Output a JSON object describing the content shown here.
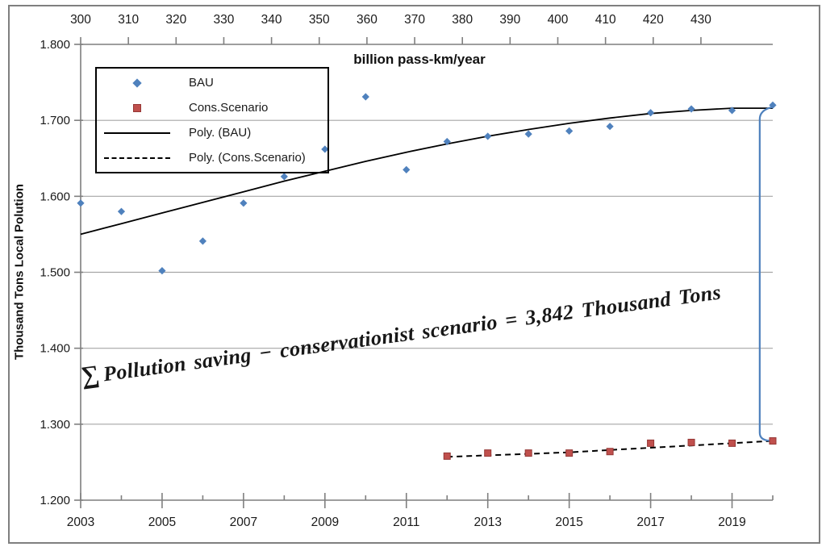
{
  "chart_data": {
    "type": "scatter",
    "title": "",
    "top_axis": {
      "title": "billion pass-km/year",
      "ticks": [
        300,
        310,
        320,
        330,
        340,
        350,
        360,
        370,
        380,
        390,
        400,
        410,
        420,
        430
      ]
    },
    "x_axis": {
      "labeled_ticks": [
        2003,
        2005,
        2007,
        2009,
        2011,
        2013,
        2015,
        2017,
        2019
      ],
      "minor_tick_step": 1,
      "range": [
        2003,
        2020
      ]
    },
    "y_axis": {
      "title": "Thousand Tons Local Polution",
      "tick_labels": [
        "1.800",
        "1.700",
        "1.600",
        "1.500",
        "1.400",
        "1.300",
        "1.200"
      ],
      "range": [
        1.2,
        1.8
      ],
      "grid": true
    },
    "series": [
      {
        "name": "BAU",
        "kind": "scatter",
        "marker": "diamond",
        "color": "#4F81BD",
        "x": [
          2003,
          2004,
          2005,
          2006,
          2007,
          2008,
          2009,
          2010,
          2011,
          2012,
          2013,
          2014,
          2015,
          2016,
          2017,
          2018,
          2019,
          2020
        ],
        "y": [
          1.591,
          1.58,
          1.502,
          1.541,
          1.591,
          1.626,
          1.662,
          1.731,
          1.635,
          1.672,
          1.679,
          1.682,
          1.686,
          1.692,
          1.71,
          1.715,
          1.713,
          1.72
        ]
      },
      {
        "name": "Cons.Scenario",
        "kind": "scatter",
        "marker": "square",
        "color": "#C0504D",
        "edge_color": "#953735",
        "x": [
          2012,
          2013,
          2014,
          2015,
          2016,
          2017,
          2018,
          2019,
          2020
        ],
        "y": [
          1.258,
          1.262,
          1.262,
          1.262,
          1.264,
          1.275,
          1.276,
          1.275,
          1.278
        ]
      },
      {
        "name": "Poly. (BAU)",
        "kind": "trend",
        "style": "solid",
        "color": "#000000",
        "x": [
          2003,
          2004,
          2005,
          2006,
          2007,
          2008,
          2009,
          2010,
          2011,
          2012,
          2013,
          2014,
          2015,
          2016,
          2017,
          2018,
          2019,
          2020
        ],
        "y": [
          1.55,
          1.564,
          1.578,
          1.592,
          1.606,
          1.62,
          1.633,
          1.646,
          1.658,
          1.669,
          1.679,
          1.688,
          1.696,
          1.703,
          1.709,
          1.713,
          1.716,
          1.716
        ]
      },
      {
        "name": "Poly. (Cons.Scenario)",
        "kind": "trend",
        "style": "dashed",
        "color": "#000000",
        "x": [
          2012,
          2013,
          2014,
          2015,
          2016,
          2017,
          2018,
          2019,
          2020
        ],
        "y": [
          1.257,
          1.259,
          1.261,
          1.263,
          1.266,
          1.269,
          1.272,
          1.275,
          1.278
        ]
      }
    ],
    "legend": {
      "position": "top-left",
      "items": [
        {
          "label": "BAU",
          "marker": "diamond"
        },
        {
          "label": "Cons.Scenario",
          "marker": "square"
        },
        {
          "label": "Poly. (BAU)",
          "marker": "solid-line"
        },
        {
          "label": "Poly. (Cons.Scenario)",
          "marker": "dashed-line"
        }
      ]
    },
    "annotation": {
      "sigma": "∑",
      "text": "Pollution saving − conservationist scenario =  3,842 Thousand Tons",
      "rotation_deg": -7.6
    },
    "connector": {
      "year": 2019.68,
      "from_value": 1.712,
      "to_value": 1.278,
      "color": "#4F81BD"
    },
    "colors": {
      "gridline": "#A6A6A6",
      "axis": "#7F7F7F",
      "tick_text": "#1a1a1a",
      "frame": "#7F7F7F",
      "background": "#FFFFFF"
    }
  }
}
